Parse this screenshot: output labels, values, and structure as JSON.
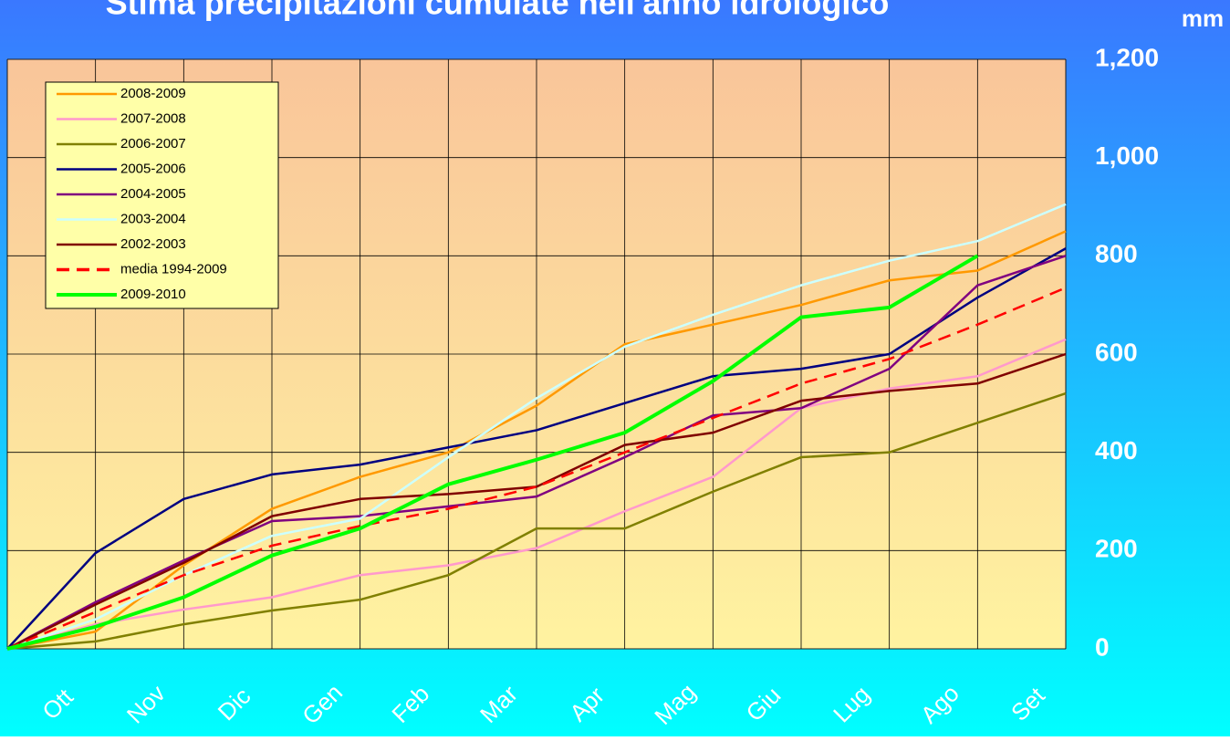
{
  "chart_data": {
    "type": "line",
    "title": "Stima precipitazioni cumulate nell'anno idrologico",
    "y_label": "mm",
    "categories": [
      null,
      "Ott",
      "Nov",
      "Dic",
      "Gen",
      "Feb",
      "Mar",
      "Apr",
      "Mag",
      "Giu",
      "Lug",
      "Ago",
      "Set"
    ],
    "ylim": [
      0,
      1200
    ],
    "yticks": [
      0,
      200,
      400,
      600,
      800,
      {
        "value": 1000,
        "label": "1,000"
      },
      {
        "value": 1200,
        "label": "1,200"
      }
    ],
    "grid": true,
    "legend": "upper left",
    "series": [
      {
        "name": "2008-2009",
        "color": "#ff9900",
        "values": [
          0,
          35,
          170,
          285,
          350,
          400,
          495,
          620,
          660,
          700,
          750,
          770,
          850
        ]
      },
      {
        "name": "2007-2008",
        "color": "#ff99cc",
        "values": [
          0,
          50,
          80,
          105,
          150,
          170,
          205,
          280,
          350,
          490,
          530,
          555,
          630
        ]
      },
      {
        "name": "2006-2007",
        "color": "#808000",
        "values": [
          0,
          15,
          50,
          78,
          100,
          150,
          245,
          245,
          320,
          390,
          400,
          460,
          520
        ]
      },
      {
        "name": "2005-2006",
        "color": "#000080",
        "values": [
          0,
          195,
          305,
          355,
          375,
          410,
          445,
          500,
          555,
          570,
          600,
          715,
          815
        ]
      },
      {
        "name": "2004-2005",
        "color": "#800080",
        "values": [
          0,
          95,
          180,
          260,
          270,
          290,
          310,
          390,
          475,
          490,
          570,
          740,
          800
        ]
      },
      {
        "name": "2003-2004",
        "color": "#ccffff",
        "values": [
          0,
          60,
          150,
          230,
          265,
          390,
          510,
          615,
          680,
          740,
          790,
          830,
          905
        ]
      },
      {
        "name": "2002-2003",
        "color": "#800000",
        "values": [
          0,
          90,
          175,
          270,
          305,
          315,
          330,
          415,
          440,
          505,
          525,
          540,
          600
        ]
      },
      {
        "name": "media 1994-2009",
        "color": "#ff0000",
        "dashed": true,
        "values": [
          0,
          75,
          150,
          210,
          250,
          285,
          330,
          400,
          470,
          540,
          590,
          660,
          735
        ]
      },
      {
        "name": "2009-2010",
        "color": "#00ff00",
        "width": 4,
        "values": [
          0,
          45,
          105,
          190,
          245,
          335,
          385,
          440,
          545,
          675,
          695,
          800,
          null
        ]
      }
    ]
  }
}
